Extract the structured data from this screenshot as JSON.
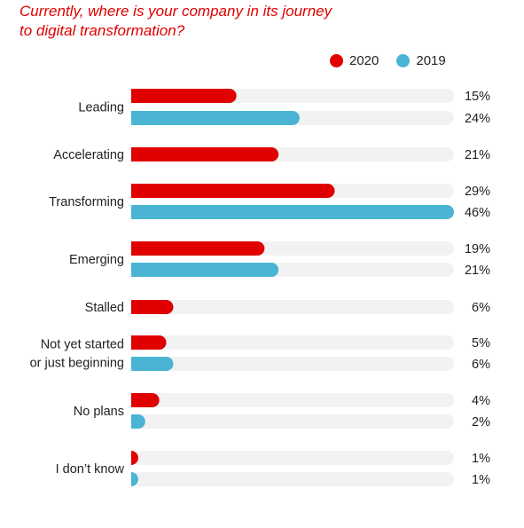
{
  "chart_data": {
    "type": "bar",
    "title": "Currently, where is your company in its journey to digital transformation?",
    "title_lines": [
      "Currently, where is your company in its journey",
      "to digital transformation?"
    ],
    "orientation": "horizontal",
    "unit": "%",
    "xlim": [
      0,
      46
    ],
    "grid": false,
    "legend_position": "top-right",
    "categories": [
      {
        "label": [
          "Leading"
        ],
        "values": {
          "2020": 15,
          "2019": 24
        }
      },
      {
        "label": [
          "Accelerating"
        ],
        "values": {
          "2020": 21
        }
      },
      {
        "label": [
          "Transforming"
        ],
        "values": {
          "2020": 29,
          "2019": 46
        }
      },
      {
        "label": [
          "Emerging"
        ],
        "values": {
          "2020": 19,
          "2019": 21
        }
      },
      {
        "label": [
          "Stalled"
        ],
        "values": {
          "2020": 6
        }
      },
      {
        "label": [
          "Not yet started",
          "or just beginning"
        ],
        "values": {
          "2020": 5,
          "2019": 6
        }
      },
      {
        "label": [
          "No plans"
        ],
        "values": {
          "2020": 4,
          "2019": 2
        }
      },
      {
        "label": [
          "I don’t know"
        ],
        "values": {
          "2020": 1,
          "2019": 1
        }
      }
    ],
    "series": [
      {
        "name": "2020",
        "color": "#e00000"
      },
      {
        "name": "2019",
        "color": "#4ab4d4"
      }
    ],
    "track_color": "#f2f2f2"
  }
}
